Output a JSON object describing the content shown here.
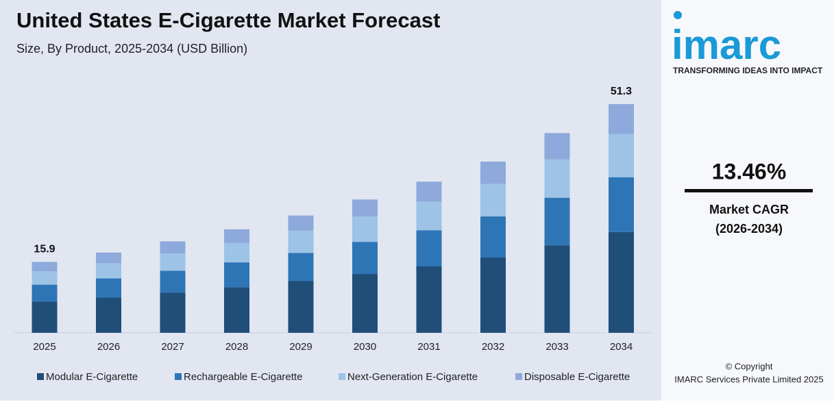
{
  "chart_data": {
    "type": "stacked-bar",
    "title": "United States E-Cigarette Market Forecast",
    "subtitle": "Size, By Product, 2025-2034 (USD Billion)",
    "categories": [
      "2025",
      "2026",
      "2027",
      "2028",
      "2029",
      "2030",
      "2031",
      "2032",
      "2033",
      "2034"
    ],
    "series": [
      {
        "name": "Modular E-Cigarette",
        "color": "#1f4e79",
        "values": [
          7.0,
          7.9,
          9.0,
          10.2,
          11.6,
          13.2,
          14.9,
          16.9,
          19.6,
          22.6
        ]
      },
      {
        "name": "Rechargeable E-Cigarette",
        "color": "#2e75b6",
        "values": [
          3.8,
          4.3,
          4.9,
          5.6,
          6.3,
          7.2,
          8.1,
          9.2,
          10.7,
          12.3
        ]
      },
      {
        "name": "Next-Generation E-Cigarette",
        "color": "#9dc3e6",
        "values": [
          3.0,
          3.4,
          3.9,
          4.4,
          5.0,
          5.7,
          6.4,
          7.3,
          8.6,
          9.7
        ]
      },
      {
        "name": "Disposable E-Cigarette",
        "color": "#8ea9db",
        "values": [
          2.1,
          2.4,
          2.7,
          3.0,
          3.4,
          3.8,
          4.5,
          5.0,
          5.9,
          6.7
        ]
      }
    ],
    "annotations": [
      {
        "category": "2025",
        "text": "15.9"
      },
      {
        "category": "2034",
        "text": "51.3"
      }
    ],
    "legend": "bottom"
  },
  "sidebar": {
    "logo": "imarc",
    "tagline": "TRANSFORMING IDEAS INTO IMPACT",
    "cagr": "13.46%",
    "cagr_label": "Market CAGR",
    "cagr_period": "(2026-2034)",
    "copyright": "© Copyright",
    "company": "IMARC Services Private Limited 2025"
  }
}
